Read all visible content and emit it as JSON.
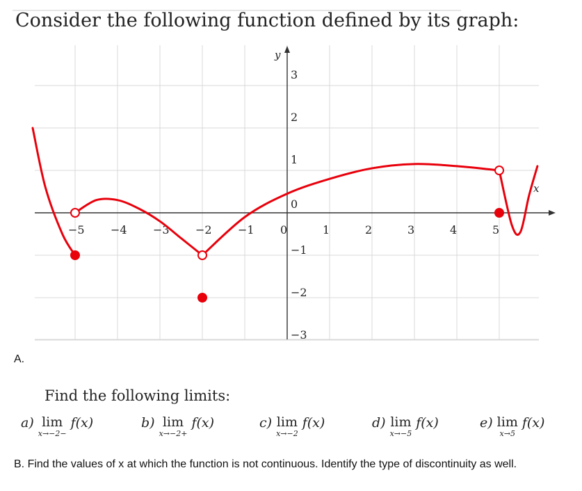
{
  "header": {
    "title": "Consider the following function defined by its graph:"
  },
  "chart_data": {
    "type": "line",
    "title": "",
    "xlabel": "x",
    "ylabel": "y",
    "xlim": [
      -6.1,
      5.9
    ],
    "ylim": [
      -3.3,
      3.6
    ],
    "x_ticks": [
      "−5",
      "−4",
      "−3",
      "−2",
      "−1",
      "0",
      "1",
      "2",
      "3",
      "4",
      "5"
    ],
    "y_ticks": [
      "3",
      "2",
      "1",
      "0",
      "−1",
      "−2",
      "−3"
    ],
    "grid": true,
    "curves": [
      {
        "name": "left branch",
        "points": [
          [
            -6.0,
            2.0
          ],
          [
            -5.7,
            0.6
          ],
          [
            -5.3,
            -0.5
          ],
          [
            -5.0,
            -1.0
          ]
        ]
      },
      {
        "name": "hump",
        "points": [
          [
            -5.0,
            0.0
          ],
          [
            -4.5,
            0.3
          ],
          [
            -4.0,
            0.3
          ],
          [
            -3.5,
            0.1
          ],
          [
            -3.0,
            -0.2
          ],
          [
            -2.5,
            -0.6
          ],
          [
            -2.0,
            -1.0
          ]
        ]
      },
      {
        "name": "middle branch",
        "points": [
          [
            -2.0,
            -1.0
          ],
          [
            -1.0,
            -0.1
          ],
          [
            0.0,
            0.45
          ],
          [
            1.0,
            0.8
          ],
          [
            2.0,
            1.05
          ],
          [
            3.0,
            1.15
          ],
          [
            4.0,
            1.1
          ],
          [
            5.0,
            1.0
          ]
        ]
      },
      {
        "name": "right branch",
        "points": [
          [
            5.0,
            1.0
          ],
          [
            5.3,
            -0.3
          ],
          [
            5.5,
            -0.45
          ],
          [
            5.7,
            0.4
          ],
          [
            5.9,
            1.1
          ]
        ]
      }
    ],
    "open_points": [
      [
        -5.0,
        0.0
      ],
      [
        -2.0,
        -1.0
      ],
      [
        5.0,
        1.0
      ]
    ],
    "closed_points": [
      [
        -5.0,
        -1.0
      ],
      [
        -2.0,
        -2.0
      ],
      [
        5.0,
        0.0
      ]
    ],
    "colors": {
      "curve": "#e8000b",
      "grid": "#d8d8d8",
      "axis": "#333333"
    }
  },
  "section_a": {
    "label": "A.",
    "prompt": "Find the following limits:",
    "limits": [
      {
        "letter": "a)",
        "lim": "lim",
        "sub": "x→−2−",
        "fx": "f(x)"
      },
      {
        "letter": "b)",
        "lim": "lim",
        "sub": "x→−2+",
        "fx": "f(x)"
      },
      {
        "letter": "c)",
        "lim": "lim",
        "sub": "x→−2",
        "fx": "f(x)"
      },
      {
        "letter": "d)",
        "lim": "lim",
        "sub": "x→−5",
        "fx": "f(x)"
      },
      {
        "letter": "e)",
        "lim": "lim",
        "sub": "x→5",
        "fx": "f(x)"
      }
    ]
  },
  "section_b": {
    "text": "B.  Find the values of x at which the function is not continuous. Identify the type of discontinuity as well."
  }
}
